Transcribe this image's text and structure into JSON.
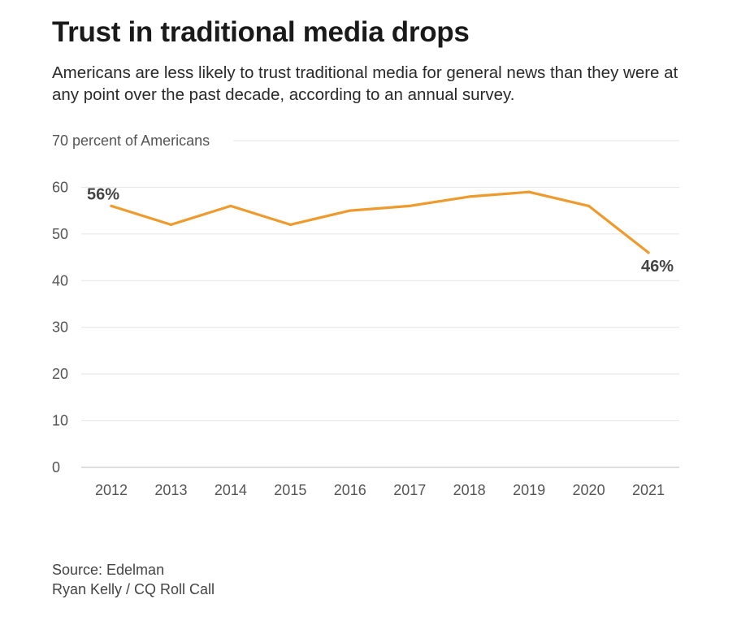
{
  "header": {
    "title": "Trust in traditional media drops",
    "subtitle": "Americans are less likely to trust traditional media for general news than they were at any point over the past decade, according to an annual survey."
  },
  "footer": {
    "source": "Source: Edelman",
    "credit": "Ryan Kelly / CQ Roll Call"
  },
  "colors": {
    "line": "#ef9a2d",
    "grid": "#e4e4e4",
    "axis": "#bdbdbd",
    "tick_text": "#555555",
    "data_label": "#444444"
  },
  "chart_data": {
    "type": "line",
    "title": "Trust in traditional media drops",
    "ylabel": "percent of Americans",
    "xlabel": "",
    "ylim": [
      0,
      70
    ],
    "y_ticks": [
      0,
      10,
      20,
      30,
      40,
      50,
      60,
      70
    ],
    "top_tick_suffix": "percent of Americans",
    "grid": true,
    "x": [
      "2012",
      "2013",
      "2014",
      "2015",
      "2016",
      "2017",
      "2018",
      "2019",
      "2020",
      "2021"
    ],
    "series": [
      {
        "name": "Trust in traditional media",
        "values": [
          56,
          52,
          56,
          52,
          55,
          56,
          58,
          59,
          56,
          46
        ]
      }
    ],
    "annotations": [
      {
        "index": 0,
        "text": "56%",
        "position": "above-left"
      },
      {
        "index": 9,
        "text": "46%",
        "position": "below-right"
      }
    ]
  }
}
